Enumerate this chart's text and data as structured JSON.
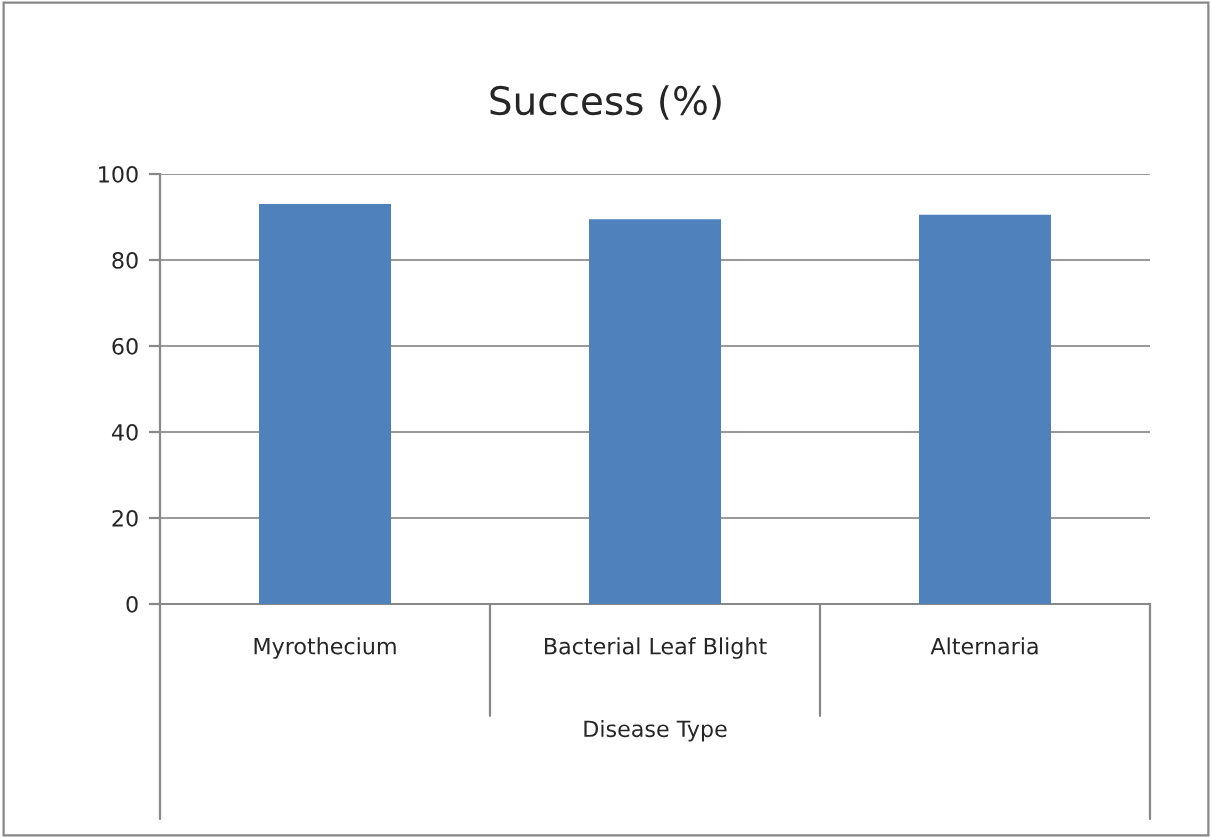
{
  "chart_data": {
    "type": "bar",
    "title": "Success (%)",
    "xlabel": "Disease Type",
    "categories": [
      "Myrothecium",
      "Bacterial Leaf Blight",
      "Alternaria"
    ],
    "values": [
      93,
      89.5,
      90.5
    ],
    "color": "#4f81bd",
    "ylim": [
      0,
      100
    ],
    "yticks": [
      0,
      20,
      40,
      60,
      80,
      100
    ],
    "grid": "y"
  }
}
